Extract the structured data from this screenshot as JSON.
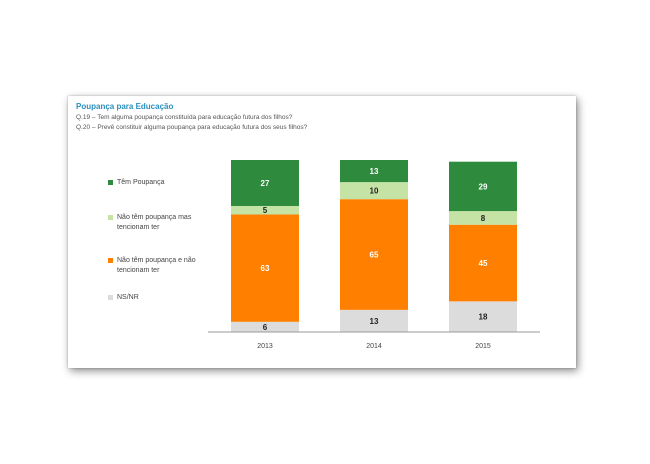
{
  "header": {
    "title": "Poupança para Educação",
    "q1": "Q.19 – Tem alguma poupança constituída para educação futura dos filhos?",
    "q2": "Q.20 – Prevê constituir alguma poupança para educação futura dos seus filhos?"
  },
  "chart_data": {
    "type": "bar",
    "stacked": true,
    "categories": [
      "2013",
      "2014",
      "2015"
    ],
    "series": [
      {
        "name": "NS/NR",
        "values": [
          6,
          13,
          18
        ],
        "color": "#dcdcdc",
        "label_color": "#222222"
      },
      {
        "name": "Não têm poupança e não tencionam ter",
        "values": [
          63,
          65,
          45
        ],
        "color": "#ff8000",
        "label_color": "#ffffff"
      },
      {
        "name": "Não têm poupança mas tencionam ter",
        "values": [
          5,
          10,
          8
        ],
        "color": "#c6e3a6",
        "label_color": "#222222"
      },
      {
        "name": "Têm Poupança",
        "values": [
          27,
          13,
          29
        ],
        "color": "#2e8b3d",
        "label_color": "#ffffff"
      }
    ],
    "ylim": [
      0,
      101
    ],
    "legend_position": "left",
    "grid": false
  },
  "legend": [
    {
      "name": "Têm Poupança",
      "color": "#2e8b3d"
    },
    {
      "name": "Não têm poupança mas tencionam ter",
      "color": "#c6e3a6"
    },
    {
      "name": "Não têm poupança e não tencionam ter",
      "color": "#ff8000"
    },
    {
      "name": "NS/NR",
      "color": "#dcdcdc"
    }
  ]
}
